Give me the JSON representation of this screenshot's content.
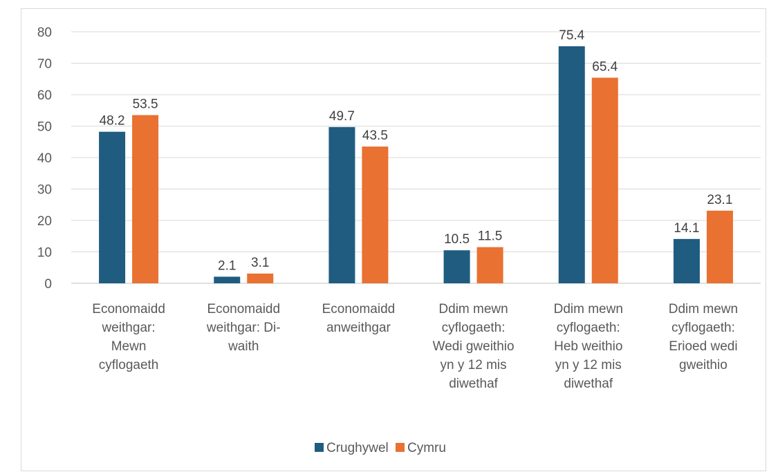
{
  "chart_data": {
    "type": "bar",
    "categories": [
      [
        "Economaidd",
        "weithgar:",
        "Mewn",
        "cyflogaeth"
      ],
      [
        "Economaidd",
        "weithgar: Di-",
        "waith"
      ],
      [
        "Economaidd",
        "anweithgar"
      ],
      [
        "Ddim mewn",
        "cyflogaeth:",
        "Wedi gweithio",
        "yn y 12 mis",
        "diwethaf"
      ],
      [
        "Ddim mewn",
        "cyflogaeth:",
        "Heb weithio",
        "yn y 12 mis",
        "diwethaf"
      ],
      [
        "Ddim mewn",
        "cyflogaeth:",
        "Erioed wedi",
        "gweithio"
      ]
    ],
    "series": [
      {
        "name": "Crughywel",
        "color": "#1f5c80",
        "values": [
          48.2,
          2.1,
          49.7,
          10.5,
          75.4,
          14.1
        ],
        "labels": [
          "48.2",
          "2.1",
          "49.7",
          "10.5",
          "75.4",
          "14.1"
        ]
      },
      {
        "name": "Cymru",
        "color": "#e97132",
        "values": [
          53.5,
          3.1,
          43.5,
          11.5,
          65.4,
          23.1
        ],
        "labels": [
          "53.5",
          "3.1",
          "43.5",
          "11.5",
          "65.4",
          "23.1"
        ]
      }
    ],
    "yticks": [
      "0",
      "10",
      "20",
      "30",
      "40",
      "50",
      "60",
      "70",
      "80"
    ],
    "ylim": [
      0,
      80
    ],
    "grid": true,
    "legend": "bottom",
    "title": "",
    "xlabel": "",
    "ylabel": ""
  }
}
